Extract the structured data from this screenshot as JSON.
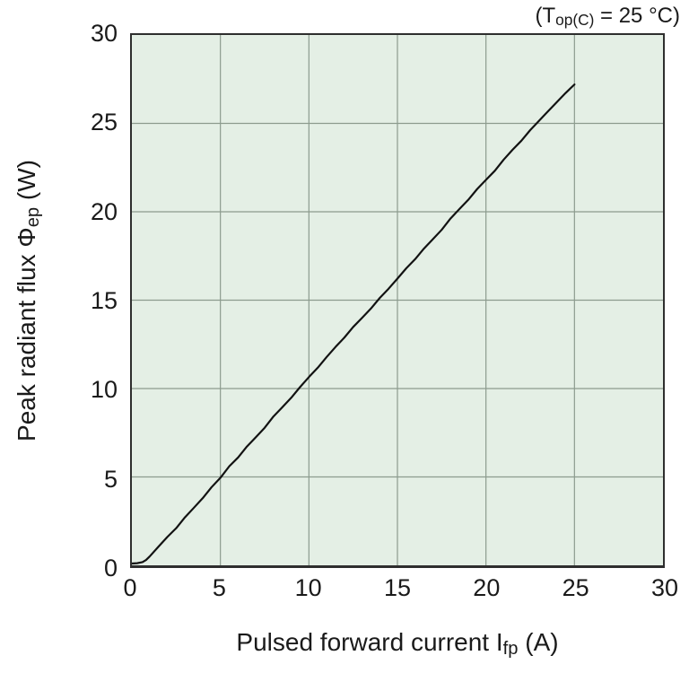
{
  "annotation": {
    "pre": "(T",
    "sub": "op(C)",
    "post": " = 25 °C)"
  },
  "y_axis": {
    "title_pre": "Peak radiant flux Φ",
    "title_sub": "ep",
    "title_post": " (W)",
    "ticks": [
      0,
      5,
      10,
      15,
      20,
      25,
      30
    ]
  },
  "x_axis": {
    "title_pre": "Pulsed forward current I",
    "title_sub": "fp",
    "title_post": " (A)",
    "ticks": [
      0,
      5,
      10,
      15,
      20,
      25,
      30
    ]
  },
  "colors": {
    "plot_bg": "#e4efe5",
    "grid": "#8c9b8e",
    "border": "#2e2e2e",
    "line": "#121212",
    "text": "#1a1a1a"
  },
  "chart_data": {
    "type": "line",
    "title": "",
    "xlabel": "Pulsed forward current Ifp (A)",
    "ylabel": "Peak radiant flux Φep (W)",
    "annotation": "(Top(C) = 25 °C)",
    "xlim": [
      0,
      30
    ],
    "ylim": [
      0,
      30
    ],
    "xticks": [
      0,
      5,
      10,
      15,
      20,
      25,
      30
    ],
    "yticks": [
      0,
      5,
      10,
      15,
      20,
      25,
      30
    ],
    "grid": true,
    "legend": false,
    "series": [
      {
        "name": "peak-radiant-flux-vs-pulsed-forward-current",
        "x": [
          0,
          0.3,
          0.6,
          0.8,
          1,
          1.5,
          2,
          2.5,
          3,
          3.5,
          4,
          4.5,
          5,
          5.5,
          6,
          6.5,
          7,
          7.5,
          8,
          8.5,
          9,
          9.5,
          10,
          10.5,
          11,
          11.5,
          12,
          12.5,
          13,
          13.5,
          14,
          14.5,
          15,
          15.5,
          16,
          16.5,
          17,
          17.5,
          18,
          18.5,
          19,
          19.5,
          20,
          20.5,
          21,
          21.5,
          22,
          22.5,
          23,
          23.5,
          24,
          24.5,
          25
        ],
        "y": [
          0.1,
          0.12,
          0.18,
          0.3,
          0.5,
          1.05,
          1.6,
          2.1,
          2.72,
          3.25,
          3.8,
          4.42,
          4.95,
          5.6,
          6.1,
          6.72,
          7.25,
          7.78,
          8.42,
          8.95,
          9.48,
          10.08,
          10.65,
          11.18,
          11.78,
          12.35,
          12.88,
          13.48,
          14.0,
          14.52,
          15.12,
          15.65,
          16.22,
          16.8,
          17.32,
          17.92,
          18.45,
          18.98,
          19.62,
          20.15,
          20.68,
          21.28,
          21.8,
          22.32,
          22.95,
          23.5,
          24.02,
          24.62,
          25.15,
          25.68,
          26.2,
          26.72,
          27.2
        ]
      }
    ]
  }
}
